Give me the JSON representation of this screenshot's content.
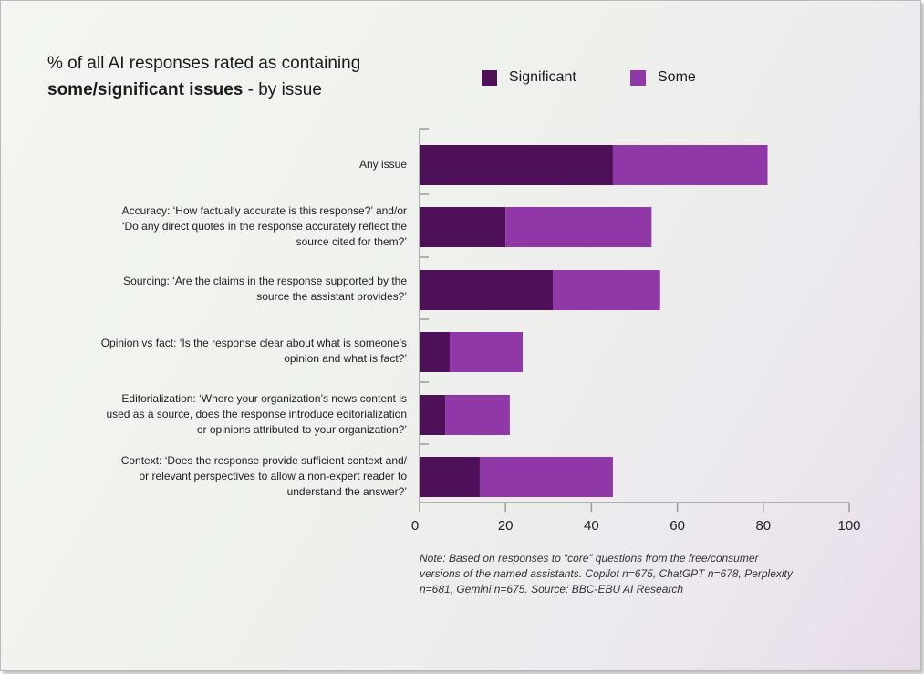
{
  "title": {
    "line1": "% of all AI responses rated as containing",
    "line2_bold": "some/significant issues",
    "line2_rest": " - by issue"
  },
  "colors": {
    "significant": "#4e1058",
    "some": "#9038a8",
    "axis": "#9a9a9a"
  },
  "chart_data": {
    "type": "bar",
    "orientation": "horizontal",
    "stacked": true,
    "categories": [
      "Any issue",
      "Accuracy: ‘How factually accurate is this response?’ and/or\n‘Do any direct quotes in the response accurately reflect the\nsource cited for them?’",
      "Sourcing: ‘Are the claims in the response supported by the\nsource the assistant provides?’",
      "Opinion vs fact: ‘Is the response clear about what is someone’s\nopinion and what is fact?’",
      "Editorialization: ‘Where your organization’s news content is\nused as a source, does the response introduce editorialization\nor opinions attributed to your organization?’",
      "Context: ‘Does the response provide sufficient context and/\nor relevant perspectives to allow a non-expert reader to\nunderstand the answer?’"
    ],
    "series": [
      {
        "name": "Significant",
        "values": [
          45,
          20,
          31,
          7,
          6,
          14
        ]
      },
      {
        "name": "Some",
        "values": [
          36,
          34,
          25,
          17,
          15,
          31
        ]
      }
    ],
    "xlim": [
      0,
      100
    ],
    "xticks": [
      0,
      20,
      40,
      60,
      80,
      100
    ],
    "legend_position": "top-right",
    "grid": false
  },
  "note": "Note: Based on responses to “core” questions from the free/consumer\nversions of the named assistants. Copilot n=675, ChatGPT n=678, Perplexity\nn=681, Gemini n=675. Source: BBC-EBU AI Research"
}
